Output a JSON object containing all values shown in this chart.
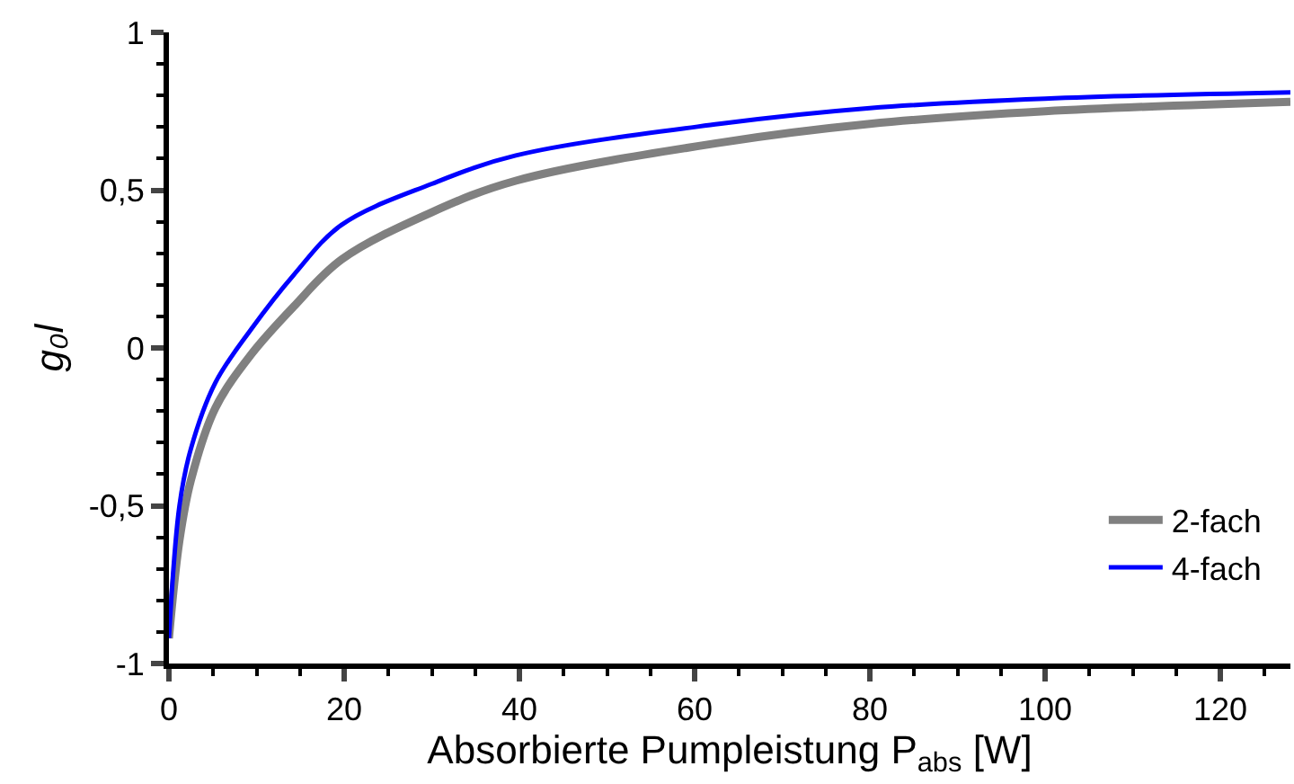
{
  "chart_data": {
    "type": "line",
    "xlabel": "Absorbierte Pumpleistung P$_{abs}$ [W]",
    "ylabel": "g₀l",
    "xlim": [
      0,
      128
    ],
    "xticks": [
      0,
      20,
      40,
      60,
      80,
      100,
      120
    ],
    "ylim": [
      -1,
      1
    ],
    "yticks": [
      {
        "value": -1,
        "label": "-1"
      },
      {
        "value": -0.5,
        "label": "-0,5"
      },
      0,
      {
        "value": 0.5,
        "label": "0,5"
      },
      1
    ],
    "legend": "bottom right",
    "marker": "none",
    "line_style": "solid",
    "series": [
      {
        "name": "2-fach",
        "color": "#808080",
        "x": [
          0,
          1.2,
          2.5,
          5.3,
          9.4,
          14.2,
          19.7,
          30,
          39.6,
          62.8,
          80,
          100,
          128
        ],
        "values": [
          -0.92,
          -0.61,
          -0.42,
          -0.19,
          -0.02,
          0.13,
          0.28,
          0.43,
          0.53,
          0.65,
          0.71,
          0.75,
          0.78
        ]
      },
      {
        "name": "4-fach",
        "color": "#0000ff",
        "x": [
          0,
          1.2,
          2.5,
          5.3,
          9.4,
          14.2,
          19.7,
          30,
          39.6,
          62.8,
          80,
          100,
          128
        ],
        "values": [
          -0.92,
          -0.5,
          -0.32,
          -0.11,
          0.06,
          0.23,
          0.39,
          0.52,
          0.61,
          0.71,
          0.76,
          0.79,
          0.81
        ]
      }
    ]
  }
}
